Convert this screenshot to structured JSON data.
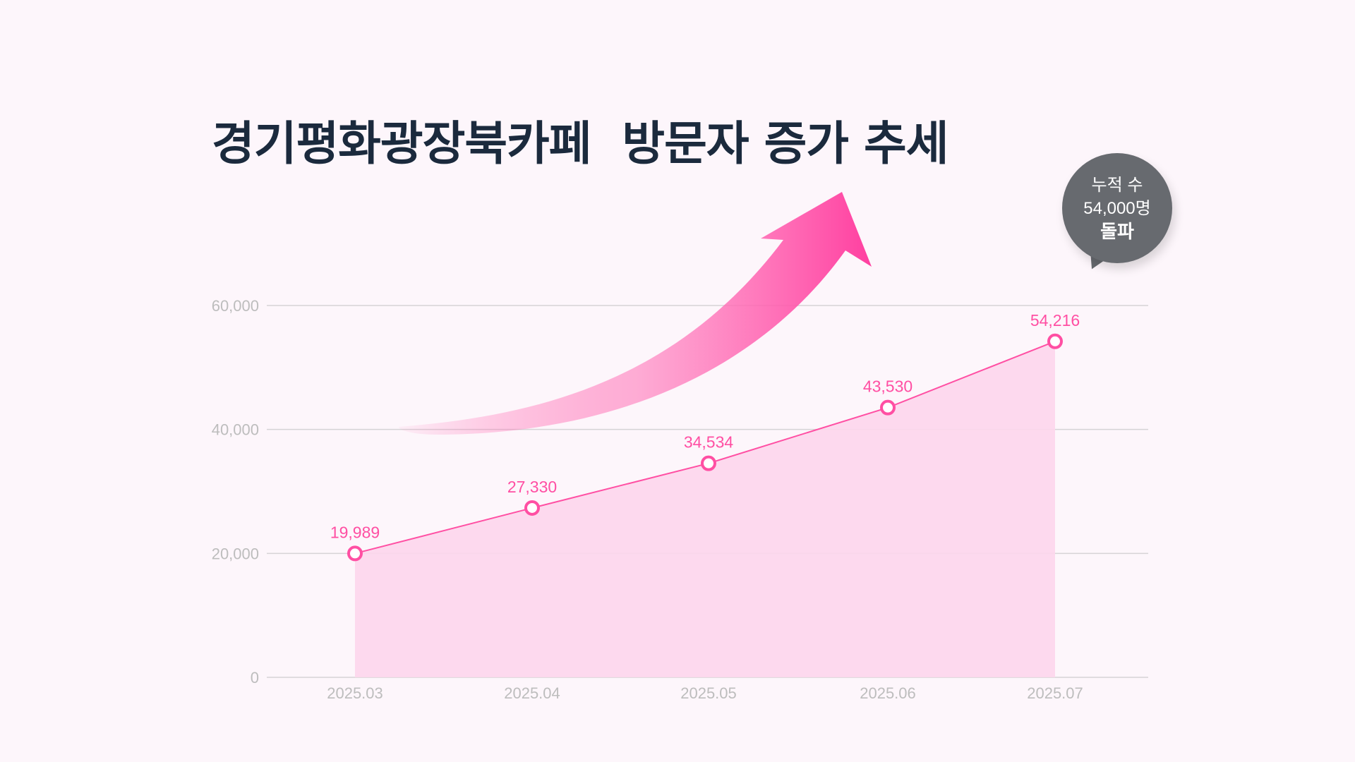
{
  "colors": {
    "accent": "#ff4fa3",
    "fill": "#fdd6ec",
    "grid": "#d6d3d6",
    "tick": "#bdbdbd",
    "title": "#1b2a3d",
    "bubble": "#676a6f"
  },
  "bubble": {
    "line1": "누적 수",
    "line2": "54,000명",
    "line3": "돌파"
  },
  "chart_data": {
    "type": "area",
    "title": "경기평화광장북카페  방문자 증가 추세",
    "categories": [
      "2025.03",
      "2025.04",
      "2025.05",
      "2025.06",
      "2025.07"
    ],
    "values": [
      19989,
      27330,
      34534,
      43530,
      54216
    ],
    "labels": [
      "19,989",
      "27,330",
      "34,534",
      "43,530",
      "54,216"
    ],
    "yticks": [
      0,
      20000,
      40000,
      60000
    ],
    "ytick_labels": [
      "0",
      "20,000",
      "40,000",
      "60,000"
    ],
    "ylim": [
      0,
      60000
    ],
    "grid": true,
    "xlabel": "",
    "ylabel": ""
  }
}
